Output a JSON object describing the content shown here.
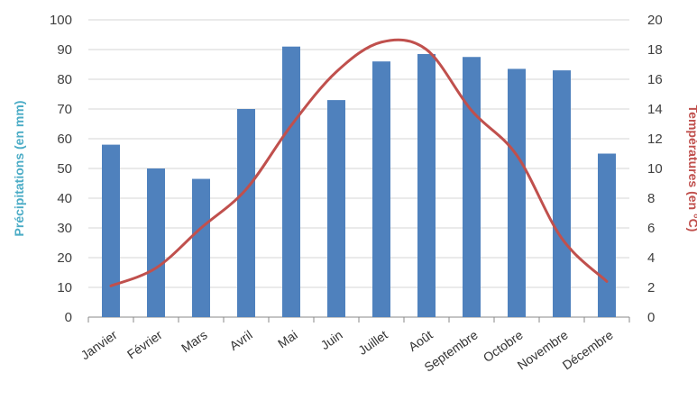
{
  "chart_data": {
    "type": "bar",
    "categories": [
      "Janvier",
      "Février",
      "Mars",
      "Avril",
      "Mai",
      "Juin",
      "Juillet",
      "Août",
      "Septembre",
      "Octobre",
      "Novembre",
      "Décembre"
    ],
    "series": [
      {
        "kind": "bar",
        "axis": "left",
        "color": "#4F81BD",
        "values": [
          58,
          50,
          46.5,
          70,
          91,
          73,
          86,
          88.5,
          87.5,
          83.5,
          83,
          55
        ]
      },
      {
        "kind": "line",
        "axis": "right",
        "color": "#C0504D",
        "values": [
          2.1,
          3.3,
          6,
          8.6,
          12.9,
          16.5,
          18.5,
          18,
          13.9,
          10.9,
          5.3,
          2.4
        ]
      }
    ],
    "ylabel": "Précipitations (en mm)",
    "ylabel_color": "#4BACC6",
    "ylim": [
      0,
      100
    ],
    "yticks": [
      0,
      10,
      20,
      30,
      40,
      50,
      60,
      70,
      80,
      90,
      100
    ],
    "y2label": "Températures (en °C)",
    "y2label_color": "#C0504D",
    "y2lim": [
      0,
      20
    ],
    "y2ticks": [
      0,
      2,
      4,
      6,
      8,
      10,
      12,
      14,
      16,
      18,
      20
    ],
    "grid": true
  }
}
